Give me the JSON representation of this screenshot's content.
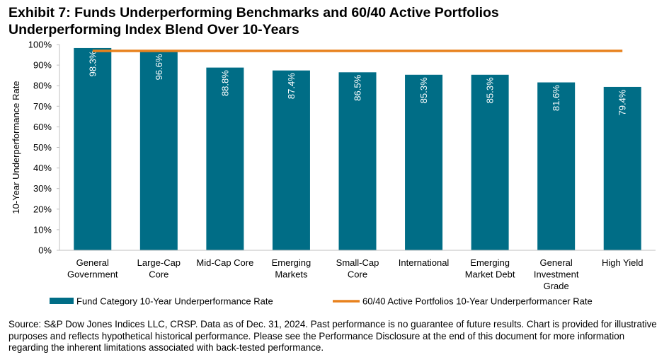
{
  "title_line1": "Exhibit 7: Funds Underperforming Benchmarks and 60/40 Active Portfolios",
  "title_line2": "Underperforming Index Blend Over 10-Years",
  "source_note": "Source: S&P Dow Jones Indices LLC, CRSP.  Data as of Dec. 31, 2024.  Past performance is no guarantee of future results.  Chart is provided for illustrative purposes and reflects hypothetical historical performance.  Please see the Performance Disclosure at the end of this document for more information regarding the inherent limitations associated with back-tested performance.",
  "chart_data": {
    "type": "bar",
    "ylabel": "10-Year Underperformance Rate",
    "ylim": [
      0,
      100
    ],
    "yticks": [
      "0%",
      "10%",
      "20%",
      "30%",
      "40%",
      "50%",
      "60%",
      "70%",
      "80%",
      "90%",
      "100%"
    ],
    "categories": [
      [
        "General",
        "Government"
      ],
      [
        "Large-Cap",
        "Core"
      ],
      [
        "Mid-Cap Core"
      ],
      [
        "Emerging",
        "Markets"
      ],
      [
        "Small-Cap",
        "Core"
      ],
      [
        "International"
      ],
      [
        "Emerging",
        "Market Debt"
      ],
      [
        "General",
        "Investment",
        "Grade"
      ],
      [
        "High Yield"
      ]
    ],
    "series": [
      {
        "name": "Fund Category 10-Year Underperformance Rate",
        "type": "bar",
        "color": "#006D86",
        "values": [
          98.3,
          96.6,
          88.8,
          87.4,
          86.5,
          85.3,
          85.3,
          81.6,
          79.4
        ],
        "labels": [
          "98.3%",
          "96.6%",
          "88.8%",
          "87.4%",
          "86.5%",
          "85.3%",
          "85.3%",
          "81.6%",
          "79.4%"
        ]
      },
      {
        "name": "60/40 Active Portfolios 10-Year Underperformancer Rate",
        "type": "line",
        "color": "#E8821E",
        "value": 96.9
      }
    ],
    "legend_position": "bottom",
    "grid": false
  }
}
